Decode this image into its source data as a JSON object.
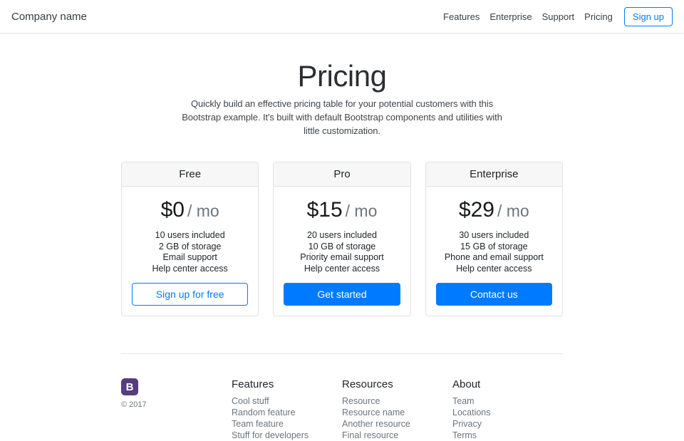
{
  "header": {
    "brand": "Company name",
    "nav": [
      {
        "label": "Features"
      },
      {
        "label": "Enterprise"
      },
      {
        "label": "Support"
      },
      {
        "label": "Pricing"
      }
    ],
    "signup_label": "Sign up"
  },
  "hero": {
    "title": "Pricing",
    "description": "Quickly build an effective pricing table for your potential customers with this Bootstrap example. It's built with default Bootstrap components and utilities with little customization."
  },
  "plans": [
    {
      "name": "Free",
      "price": "$0",
      "period": "/ mo",
      "features": [
        "10 users included",
        "2 GB of storage",
        "Email support",
        "Help center access"
      ],
      "cta": "Sign up for free"
    },
    {
      "name": "Pro",
      "price": "$15",
      "period": "/ mo",
      "features": [
        "20 users included",
        "10 GB of storage",
        "Priority email support",
        "Help center access"
      ],
      "cta": "Get started"
    },
    {
      "name": "Enterprise",
      "price": "$29",
      "period": "/ mo",
      "features": [
        "30 users included",
        "15 GB of storage",
        "Phone and email support",
        "Help center access"
      ],
      "cta": "Contact us"
    }
  ],
  "footer": {
    "logo_letter": "B",
    "copyright": "© 2017",
    "columns": [
      {
        "title": "Features",
        "links": [
          "Cool stuff",
          "Random feature",
          "Team feature",
          "Stuff for developers"
        ]
      },
      {
        "title": "Resources",
        "links": [
          "Resource",
          "Resource name",
          "Another resource",
          "Final resource"
        ]
      },
      {
        "title": "About",
        "links": [
          "Team",
          "Locations",
          "Privacy",
          "Terms"
        ]
      }
    ]
  },
  "colors": {
    "primary": "#007bff",
    "muted": "#6c757d",
    "logo_purple": "#563d7c"
  }
}
